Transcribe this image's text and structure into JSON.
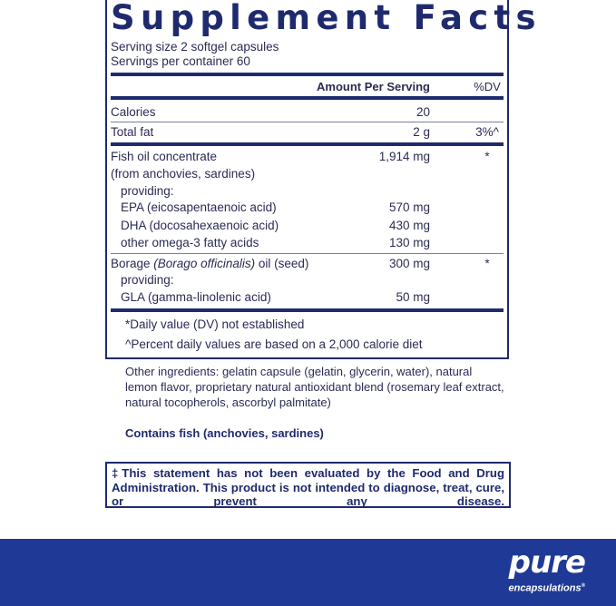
{
  "title": "Supplement Facts",
  "serving_size": "Serving size  2 softgel capsules",
  "servings_per_container": "Servings per container  60",
  "header": {
    "amount": "Amount Per Serving",
    "dv": "%DV"
  },
  "rows": [
    {
      "name": "Calories",
      "amount": "20",
      "dv": ""
    },
    {
      "name": "Total fat",
      "amount": "2 g",
      "dv": "3%^"
    },
    {
      "name": "Fish oil concentrate",
      "amount": "1,914 mg",
      "dv": "*"
    },
    {
      "name": "(from anchovies, sardines)"
    },
    {
      "name": "providing:"
    },
    {
      "name": "EPA (eicosapentaenoic acid)",
      "amount": "570 mg"
    },
    {
      "name": "DHA (docosahexaenoic acid)",
      "amount": "430 mg"
    },
    {
      "name": "other omega-3 fatty acids",
      "amount": "130 mg"
    },
    {
      "name_pre": "Borage ",
      "name_italic": "(Borago officinalis)",
      "name_post": " oil (seed)",
      "amount": "300 mg",
      "dv": "*"
    },
    {
      "name": "providing:"
    },
    {
      "name": "GLA (gamma-linolenic acid)",
      "amount": "50 mg"
    }
  ],
  "footnotes": [
    "*Daily value (DV) not established",
    "^Percent daily values are based on a 2,000 calorie diet"
  ],
  "other_ingredients": [
    "Other ingredients: gelatin capsule (gelatin, glycerin, water), natural",
    "lemon flavor, proprietary natural antioxidant blend (rosemary leaf extract,",
    "natural tocopherols, ascorbyl palmitate)"
  ],
  "allergen": "Contains fish (anchovies, sardines)",
  "disclaimer": "‡This statement has not been evaluated by the Food and Drug Administration. This product is not intended to diagnose, treat, cure, or prevent any disease.",
  "brand": {
    "name": "pure",
    "sub": "encapsulations",
    "mark": "®"
  },
  "colors": {
    "navy": "#1f2a6e",
    "band": "#1f3a96"
  }
}
